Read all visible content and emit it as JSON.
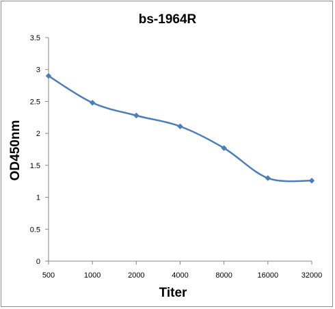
{
  "chart_data": {
    "type": "line",
    "title": "bs-1964R",
    "xlabel": "Titer",
    "ylabel": "OD450nm",
    "categories": [
      "500",
      "1000",
      "2000",
      "4000",
      "8000",
      "16000",
      "32000"
    ],
    "series": [
      {
        "values": [
          2.9,
          2.48,
          2.28,
          2.11,
          1.77,
          1.3,
          1.26
        ]
      }
    ],
    "ylim": [
      0,
      3.5
    ],
    "yticks": [
      "0",
      "0.5",
      "1",
      "1.5",
      "2",
      "2.5",
      "3",
      "3.5"
    ],
    "grid": false,
    "legend": "none",
    "colors": {
      "series": "#4a7ebb",
      "axis": "#868686"
    }
  }
}
